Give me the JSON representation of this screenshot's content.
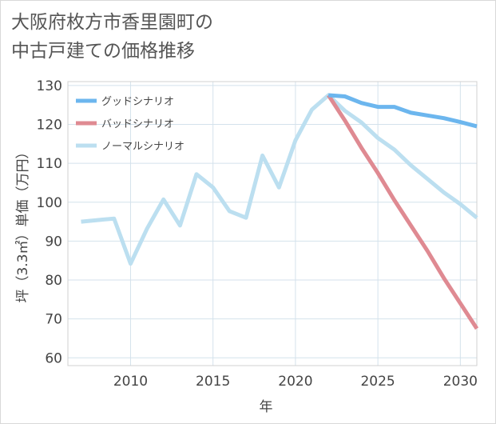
{
  "title_lines": [
    "大阪府枚方市香里園町の",
    "中古戸建ての価格推移"
  ],
  "chart_data": {
    "type": "line",
    "xlabel": "年",
    "ylabel": "坪（3.3㎡）単価（万円）",
    "xlim": [
      2006.2,
      2031
    ],
    "ylim": [
      58,
      131
    ],
    "xticks": [
      2010,
      2015,
      2020,
      2025,
      2030
    ],
    "yticks": [
      60,
      70,
      80,
      90,
      100,
      110,
      120,
      130
    ],
    "grid": true,
    "legend_position": "top-left",
    "series": [
      {
        "name": "グッドシナリオ",
        "color": "#6cb6ee",
        "x": [
          2022,
          2023,
          2024,
          2025,
          2026,
          2027,
          2028,
          2029,
          2030,
          2031
        ],
        "y": [
          127.5,
          127.2,
          125.5,
          124.5,
          124.5,
          123.0,
          122.3,
          121.6,
          120.6,
          119.5
        ]
      },
      {
        "name": "バッドシナリオ",
        "color": "#df8a92",
        "x": [
          2022,
          2023,
          2024,
          2025,
          2026,
          2027,
          2028,
          2029,
          2030,
          2031
        ],
        "y": [
          127.5,
          121.0,
          114.0,
          107.5,
          100.5,
          94.0,
          87.5,
          80.5,
          74.0,
          67.5
        ]
      },
      {
        "name": "ノーマルシナリオ",
        "color": "#bcdff0",
        "x": [
          2007,
          2008,
          2009,
          2010,
          2011,
          2012,
          2013,
          2014,
          2015,
          2016,
          2017,
          2018,
          2019,
          2020,
          2021,
          2022,
          2023,
          2024,
          2025,
          2026,
          2027,
          2028,
          2029,
          2030,
          2031
        ],
        "y": [
          95.0,
          95.4,
          95.8,
          84.2,
          93.2,
          100.7,
          94.0,
          107.2,
          103.8,
          97.7,
          96.0,
          112.0,
          103.8,
          115.9,
          123.8,
          127.5,
          123.5,
          120.5,
          116.5,
          113.5,
          109.5,
          106.0,
          102.5,
          99.5,
          96.0
        ]
      }
    ]
  }
}
